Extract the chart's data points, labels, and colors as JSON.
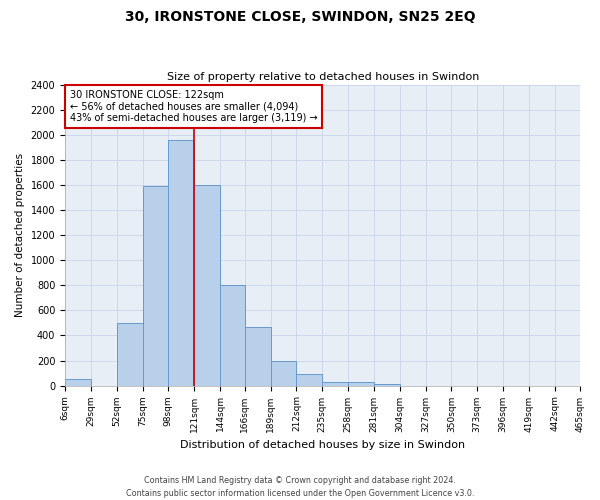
{
  "title": "30, IRONSTONE CLOSE, SWINDON, SN25 2EQ",
  "subtitle": "Size of property relative to detached houses in Swindon",
  "xlabel": "Distribution of detached houses by size in Swindon",
  "ylabel": "Number of detached properties",
  "footer_line1": "Contains HM Land Registry data © Crown copyright and database right 2024.",
  "footer_line2": "Contains public sector information licensed under the Open Government Licence v3.0.",
  "annotation_line1": "30 IRONSTONE CLOSE: 122sqm",
  "annotation_line2": "← 56% of detached houses are smaller (4,094)",
  "annotation_line3": "43% of semi-detached houses are larger (3,119) →",
  "bin_edges": [
    6,
    29,
    52,
    75,
    98,
    121,
    144,
    166,
    189,
    212,
    235,
    258,
    281,
    304,
    327,
    350,
    373,
    396,
    419,
    442,
    465
  ],
  "bar_values": [
    50,
    0,
    500,
    1590,
    1960,
    1600,
    800,
    470,
    195,
    90,
    30,
    25,
    10,
    0,
    0,
    0,
    0,
    0,
    0,
    0
  ],
  "tick_labels": [
    "6sqm",
    "29sqm",
    "52sqm",
    "75sqm",
    "98sqm",
    "121sqm",
    "144sqm",
    "166sqm",
    "189sqm",
    "212sqm",
    "235sqm",
    "258sqm",
    "281sqm",
    "304sqm",
    "327sqm",
    "350sqm",
    "373sqm",
    "396sqm",
    "419sqm",
    "442sqm",
    "465sqm"
  ],
  "bar_color": "#b8d0ea",
  "bar_edge_color": "#6699cc",
  "red_line_x": 121,
  "red_line_color": "#cc0000",
  "annotation_box_edge_color": "#cc0000",
  "ylim": [
    0,
    2400
  ],
  "yticks": [
    0,
    200,
    400,
    600,
    800,
    1000,
    1200,
    1400,
    1600,
    1800,
    2000,
    2200,
    2400
  ],
  "grid_color": "#c8d4e8",
  "background_color": "#e8eef6"
}
